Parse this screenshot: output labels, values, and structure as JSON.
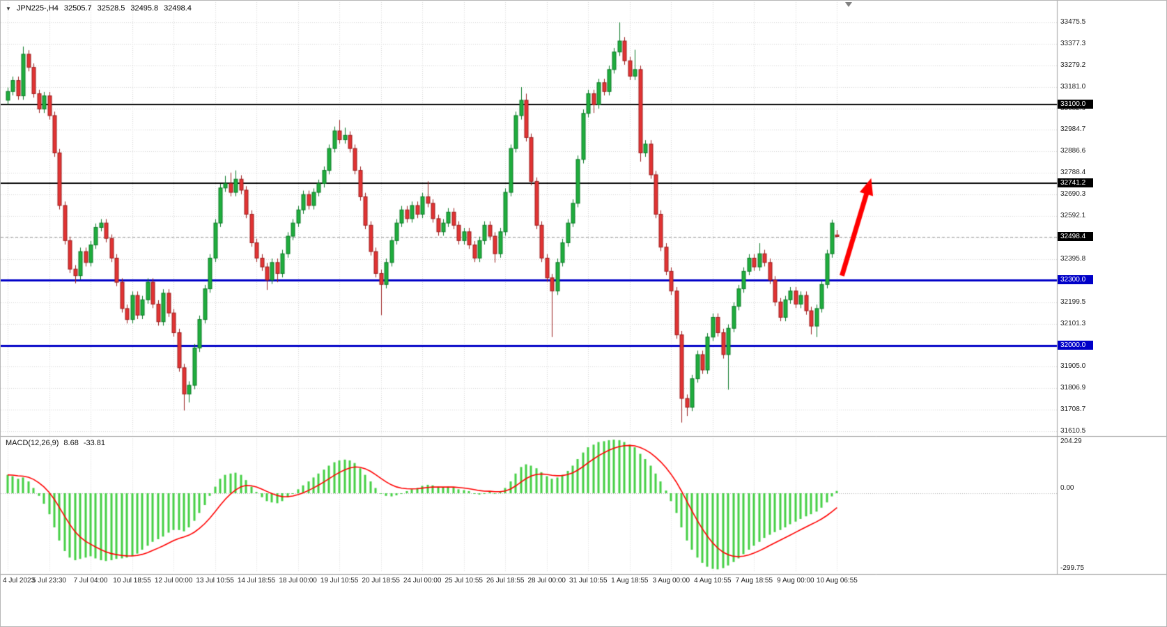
{
  "header": {
    "marker": "▼",
    "symbol": "JPN225-,H4",
    "open": "32505.7",
    "high": "32528.5",
    "low": "32495.8",
    "close": "32498.4"
  },
  "colors": {
    "background": "#ffffff",
    "grid": "#d6d6d6",
    "up_body": "#1fae3d",
    "up_border": "#0b7a27",
    "down_body": "#e23333",
    "down_border": "#9c1f1f",
    "macd_histogram": "#44d044",
    "macd_signal": "#ff0000",
    "hline_black": "#000000",
    "hline_blue": "#0000c8",
    "arrow": "#ff0000",
    "badge_text": "#ffffff",
    "axis_text": "#222222",
    "separator": "#a6a6a6",
    "current_price_line": "#a0a0a0",
    "current_price_badge": "#000000"
  },
  "chart_data": [
    {
      "type": "candlestick",
      "title": "JPN225-,H4",
      "bar_count": 161,
      "x_tick_bar_interval": 8,
      "x_tick_labels": [
        "4 Jul 2023",
        "5 Jul 23:30",
        "7 Jul 04:00",
        "10 Jul 18:55",
        "12 Jul 00:00",
        "13 Jul 10:55",
        "14 Jul 18:55",
        "18 Jul 00:00",
        "19 Jul 10:55",
        "20 Jul 18:55",
        "24 Jul 00:00",
        "25 Jul 10:55",
        "26 Jul 18:55",
        "28 Jul 00:00",
        "31 Jul 10:55",
        "1 Aug 18:55",
        "3 Aug 00:00",
        "4 Aug 10:55",
        "7 Aug 18:55",
        "9 Aug 00:00",
        "10 Aug 06:55"
      ],
      "ylim": [
        31610.5,
        33475.5
      ],
      "y_tick_labels": [
        "33475.5",
        "33377.3",
        "33279.2",
        "33181.0",
        "33082.9",
        "32984.7",
        "32886.6",
        "32788.4",
        "32690.3",
        "32592.1",
        "32494.0",
        "32395.8",
        "32297.6",
        "32199.5",
        "32101.3",
        "32003.2",
        "31905.0",
        "31806.9",
        "31708.7",
        "31610.5"
      ],
      "current_price": 32498.4,
      "current_price_label": "32498.4",
      "hlines": [
        {
          "price": 33100.0,
          "label": "33100.0",
          "color_key": "hline_black",
          "width": 2
        },
        {
          "price": 32741.2,
          "label": "32741.2",
          "color_key": "hline_black",
          "width": 2
        },
        {
          "price": 32300.0,
          "label": "32300.0",
          "color_key": "hline_blue",
          "width": 3
        },
        {
          "price": 32000.0,
          "label": "32000.0",
          "color_key": "hline_blue",
          "width": 3
        }
      ],
      "arrow": {
        "start_price": 32320,
        "end_price": 32765,
        "color_key": "arrow"
      },
      "candles": [
        [
          33120,
          33178,
          33102,
          33160
        ],
        [
          33160,
          33228,
          33142,
          33210
        ],
        [
          33210,
          33228,
          33122,
          33140
        ],
        [
          33140,
          33365,
          33122,
          33330
        ],
        [
          33330,
          33348,
          33252,
          33270
        ],
        [
          33270,
          33288,
          33132,
          33150
        ],
        [
          33150,
          33168,
          33062,
          33080
        ],
        [
          33080,
          33158,
          33062,
          33140
        ],
        [
          33140,
          33158,
          33032,
          33050
        ],
        [
          33050,
          33068,
          32862,
          32880
        ],
        [
          32880,
          32898,
          32622,
          32640
        ],
        [
          32640,
          32658,
          32462,
          32480
        ],
        [
          32480,
          32498,
          32332,
          32350
        ],
        [
          32350,
          32368,
          32285,
          32320
        ],
        [
          32320,
          32448,
          32302,
          32430
        ],
        [
          32430,
          32448,
          32362,
          32380
        ],
        [
          32380,
          32478,
          32362,
          32460
        ],
        [
          32460,
          32558,
          32442,
          32540
        ],
        [
          32540,
          32578,
          32522,
          32560
        ],
        [
          32560,
          32578,
          32472,
          32490
        ],
        [
          32490,
          32508,
          32382,
          32400
        ],
        [
          32400,
          32418,
          32272,
          32290
        ],
        [
          32290,
          32308,
          32152,
          32170
        ],
        [
          32170,
          32188,
          32102,
          32120
        ],
        [
          32120,
          32248,
          32102,
          32230
        ],
        [
          32230,
          32248,
          32122,
          32140
        ],
        [
          32140,
          32228,
          32122,
          32210
        ],
        [
          32210,
          32308,
          32192,
          32290
        ],
        [
          32290,
          32308,
          32172,
          32190
        ],
        [
          32190,
          32208,
          32092,
          32110
        ],
        [
          32110,
          32258,
          32092,
          32240
        ],
        [
          32240,
          32258,
          32132,
          32150
        ],
        [
          32150,
          32168,
          32042,
          32060
        ],
        [
          32060,
          32078,
          31882,
          31900
        ],
        [
          31900,
          31918,
          31705,
          31780
        ],
        [
          31780,
          31838,
          31742,
          31820
        ],
        [
          31820,
          32008,
          31802,
          31990
        ],
        [
          31990,
          32138,
          31972,
          32120
        ],
        [
          32120,
          32278,
          32102,
          32260
        ],
        [
          32260,
          32418,
          32242,
          32400
        ],
        [
          32400,
          32578,
          32382,
          32560
        ],
        [
          32560,
          32738,
          32542,
          32720
        ],
        [
          32720,
          32775,
          32702,
          32740
        ],
        [
          32740,
          32790,
          32682,
          32700
        ],
        [
          32700,
          32800,
          32682,
          32760
        ],
        [
          32760,
          32778,
          32692,
          32710
        ],
        [
          32710,
          32728,
          32582,
          32600
        ],
        [
          32600,
          32618,
          32452,
          32470
        ],
        [
          32470,
          32488,
          32382,
          32400
        ],
        [
          32400,
          32418,
          32342,
          32360
        ],
        [
          32360,
          32378,
          32255,
          32300
        ],
        [
          32300,
          32398,
          32282,
          32380
        ],
        [
          32380,
          32398,
          32290,
          32330
        ],
        [
          32330,
          32438,
          32312,
          32420
        ],
        [
          32420,
          32518,
          32402,
          32500
        ],
        [
          32500,
          32578,
          32482,
          32560
        ],
        [
          32560,
          32638,
          32542,
          32620
        ],
        [
          32620,
          32708,
          32602,
          32690
        ],
        [
          32690,
          32708,
          32622,
          32640
        ],
        [
          32640,
          32718,
          32622,
          32700
        ],
        [
          32700,
          32758,
          32682,
          32740
        ],
        [
          32740,
          32818,
          32722,
          32800
        ],
        [
          32800,
          32918,
          32782,
          32900
        ],
        [
          32900,
          33000,
          32882,
          32980
        ],
        [
          32980,
          33030,
          32922,
          32940
        ],
        [
          32940,
          32995,
          32922,
          32960
        ],
        [
          32960,
          32978,
          32882,
          32900
        ],
        [
          32900,
          32918,
          32782,
          32800
        ],
        [
          32800,
          32818,
          32662,
          32680
        ],
        [
          32680,
          32698,
          32532,
          32550
        ],
        [
          32550,
          32568,
          32412,
          32430
        ],
        [
          32430,
          32448,
          32312,
          32330
        ],
        [
          32330,
          32348,
          32140,
          32280
        ],
        [
          32280,
          32398,
          32262,
          32380
        ],
        [
          32380,
          32498,
          32362,
          32480
        ],
        [
          32480,
          32578,
          32462,
          32560
        ],
        [
          32560,
          32638,
          32542,
          32620
        ],
        [
          32620,
          32638,
          32562,
          32580
        ],
        [
          32580,
          32658,
          32562,
          32640
        ],
        [
          32640,
          32658,
          32582,
          32600
        ],
        [
          32600,
          32698,
          32582,
          32680
        ],
        [
          32680,
          32750,
          32632,
          32650
        ],
        [
          32650,
          32668,
          32562,
          32580
        ],
        [
          32580,
          32598,
          32502,
          32520
        ],
        [
          32520,
          32578,
          32502,
          32560
        ],
        [
          32560,
          32628,
          32542,
          32610
        ],
        [
          32610,
          32628,
          32532,
          32550
        ],
        [
          32550,
          32568,
          32462,
          32480
        ],
        [
          32480,
          32538,
          32462,
          32520
        ],
        [
          32520,
          32538,
          32442,
          32460
        ],
        [
          32460,
          32478,
          32382,
          32400
        ],
        [
          32400,
          32498,
          32382,
          32480
        ],
        [
          32480,
          32568,
          32462,
          32550
        ],
        [
          32550,
          32568,
          32482,
          32500
        ],
        [
          32500,
          32518,
          32380,
          32420
        ],
        [
          32420,
          32538,
          32402,
          32520
        ],
        [
          32520,
          32718,
          32502,
          32700
        ],
        [
          32700,
          32918,
          32682,
          32900
        ],
        [
          32900,
          33068,
          32882,
          33050
        ],
        [
          33050,
          33180,
          33032,
          33120
        ],
        [
          33120,
          33150,
          32932,
          32950
        ],
        [
          32950,
          32968,
          32732,
          32750
        ],
        [
          32750,
          32768,
          32532,
          32550
        ],
        [
          32550,
          32568,
          32382,
          32400
        ],
        [
          32400,
          32418,
          32292,
          32310
        ],
        [
          32310,
          32328,
          32040,
          32250
        ],
        [
          32250,
          32398,
          32232,
          32380
        ],
        [
          32380,
          32488,
          32362,
          32470
        ],
        [
          32470,
          32578,
          32452,
          32560
        ],
        [
          32560,
          32668,
          32542,
          32650
        ],
        [
          32650,
          32868,
          32632,
          32850
        ],
        [
          32850,
          33078,
          32832,
          33060
        ],
        [
          33060,
          33168,
          33042,
          33150
        ],
        [
          33150,
          33168,
          33062,
          33100
        ],
        [
          33100,
          33218,
          33082,
          33200
        ],
        [
          33200,
          33218,
          33142,
          33160
        ],
        [
          33160,
          33278,
          33142,
          33260
        ],
        [
          33260,
          33358,
          33242,
          33340
        ],
        [
          33340,
          33475,
          33322,
          33390
        ],
        [
          33390,
          33408,
          33282,
          33300
        ],
        [
          33300,
          33318,
          33212,
          33230
        ],
        [
          33230,
          33350,
          33212,
          33260
        ],
        [
          33260,
          33278,
          32840,
          32880
        ],
        [
          32880,
          32938,
          32862,
          32920
        ],
        [
          32920,
          32938,
          32762,
          32780
        ],
        [
          32780,
          32798,
          32582,
          32600
        ],
        [
          32600,
          32618,
          32432,
          32450
        ],
        [
          32450,
          32468,
          32322,
          32340
        ],
        [
          32340,
          32358,
          32232,
          32250
        ],
        [
          32250,
          32268,
          32032,
          32050
        ],
        [
          32050,
          32068,
          31650,
          31760
        ],
        [
          31760,
          31778,
          31680,
          31720
        ],
        [
          31720,
          31868,
          31702,
          31850
        ],
        [
          31850,
          31978,
          31832,
          31960
        ],
        [
          31960,
          31978,
          31872,
          31890
        ],
        [
          31890,
          32058,
          31872,
          32040
        ],
        [
          32040,
          32148,
          32022,
          32130
        ],
        [
          32130,
          32148,
          32042,
          32060
        ],
        [
          32060,
          32078,
          31942,
          31960
        ],
        [
          31960,
          32098,
          31800,
          32080
        ],
        [
          32080,
          32198,
          32062,
          32180
        ],
        [
          32180,
          32278,
          32162,
          32260
        ],
        [
          32260,
          32358,
          32242,
          32340
        ],
        [
          32340,
          32418,
          32322,
          32400
        ],
        [
          32400,
          32418,
          32342,
          32360
        ],
        [
          32360,
          32468,
          32342,
          32420
        ],
        [
          32420,
          32438,
          32362,
          32380
        ],
        [
          32380,
          32398,
          32282,
          32300
        ],
        [
          32300,
          32318,
          32182,
          32200
        ],
        [
          32200,
          32218,
          32112,
          32130
        ],
        [
          32130,
          32228,
          32112,
          32210
        ],
        [
          32210,
          32268,
          32192,
          32250
        ],
        [
          32250,
          32268,
          32172,
          32190
        ],
        [
          32190,
          32248,
          32172,
          32230
        ],
        [
          32230,
          32248,
          32142,
          32160
        ],
        [
          32160,
          32178,
          32052,
          32090
        ],
        [
          32090,
          32188,
          32040,
          32170
        ],
        [
          32170,
          32298,
          32152,
          32280
        ],
        [
          32280,
          32438,
          32262,
          32420
        ],
        [
          32420,
          32575,
          32402,
          32560
        ],
        [
          32505.7,
          32528.5,
          32495.8,
          32498.4
        ]
      ]
    },
    {
      "type": "bar",
      "title": "MACD(12,26,9)",
      "params": "12,26,9",
      "last_main": 8.68,
      "last_main_label": "8.68",
      "last_signal": -33.81,
      "last_signal_label": "-33.81",
      "signal_period": 9,
      "ylim": [
        -299.75,
        204.29
      ],
      "y_tick_labels": [
        "204.29",
        "0.00",
        "-299.75"
      ],
      "values": [
        70,
        65,
        55,
        60,
        45,
        20,
        -10,
        -40,
        -80,
        -130,
        -180,
        -220,
        -245,
        -255,
        -250,
        -245,
        -240,
        -248,
        -255,
        -258,
        -255,
        -250,
        -248,
        -245,
        -240,
        -230,
        -215,
        -200,
        -185,
        -175,
        -165,
        -150,
        -140,
        -140,
        -145,
        -130,
        -105,
        -75,
        -45,
        -10,
        25,
        55,
        70,
        75,
        78,
        70,
        50,
        25,
        5,
        -15,
        -30,
        -35,
        -38,
        -30,
        -15,
        0,
        15,
        30,
        45,
        60,
        75,
        90,
        105,
        118,
        125,
        128,
        125,
        115,
        95,
        70,
        45,
        20,
        0,
        -10,
        -12,
        -8,
        0,
        8,
        15,
        20,
        28,
        32,
        30,
        25,
        22,
        25,
        22,
        15,
        12,
        8,
        0,
        -5,
        0,
        5,
        0,
        5,
        20,
        45,
        75,
        100,
        110,
        105,
        95,
        80,
        65,
        55,
        60,
        70,
        85,
        105,
        130,
        155,
        175,
        185,
        195,
        198,
        202,
        204,
        202,
        195,
        185,
        175,
        150,
        130,
        105,
        75,
        45,
        10,
        -30,
        -75,
        -130,
        -180,
        -215,
        -245,
        -265,
        -280,
        -288,
        -290,
        -285,
        -275,
        -262,
        -248,
        -232,
        -215,
        -200,
        -185,
        -170,
        -158,
        -148,
        -140,
        -130,
        -118,
        -108,
        -98,
        -88,
        -80,
        -70,
        -55,
        -35,
        -12,
        8.68
      ]
    }
  ]
}
